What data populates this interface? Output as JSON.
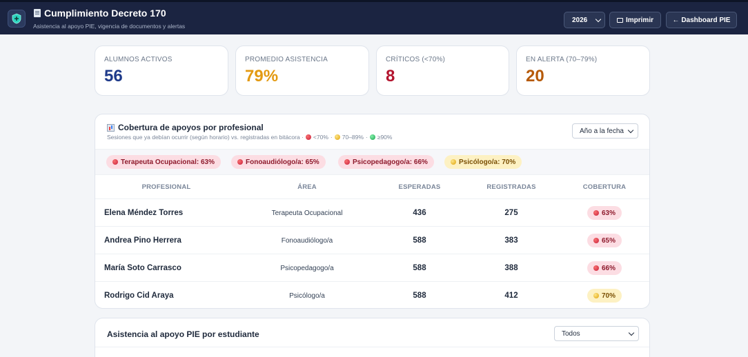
{
  "header": {
    "title": "Cumplimiento Decreto 170",
    "subtitle": "Asistencia al apoyo PIE, vigencia de documentos y alertas",
    "year": "2026",
    "print_label": "Imprimir",
    "dashboard_label": "← Dashboard PIE"
  },
  "stats": [
    {
      "label": "ALUMNOS ACTIVOS",
      "value": "56",
      "color": "#1e3a8a"
    },
    {
      "label": "PROMEDIO ASISTENCIA",
      "value": "79%",
      "color": "#e39a12"
    },
    {
      "label": "CRÍTICOS (<70%)",
      "value": "8",
      "color": "#b3142e"
    },
    {
      "label": "EN ALERTA (70–79%)",
      "value": "20",
      "color": "#b65a09"
    }
  ],
  "coverage": {
    "title": "Cobertura de apoyos por profesional",
    "description": "Sesiones que ya debían ocurrir (según horario) vs. registradas en bitácora ·",
    "legend": {
      "red": "<70%",
      "yellow": "70–89%",
      "green": "≥90%"
    },
    "period": "Año a la fecha",
    "summary_pills": [
      {
        "label": "Terapeuta Ocupacional: 63%",
        "status": "red"
      },
      {
        "label": "Fonoaudiólogo/a: 65%",
        "status": "red"
      },
      {
        "label": "Psicopedagogo/a: 66%",
        "status": "red"
      },
      {
        "label": "Psicólogo/a: 70%",
        "status": "yellow"
      }
    ],
    "columns": [
      "PROFESIONAL",
      "ÁREA",
      "ESPERADAS",
      "REGISTRADAS",
      "COBERTURA"
    ],
    "rows": [
      {
        "name": "Elena Méndez Torres",
        "area": "Terapeuta Ocupacional",
        "expected": "436",
        "registered": "275",
        "coverage": "63%",
        "status": "red"
      },
      {
        "name": "Andrea Pino Herrera",
        "area": "Fonoaudiólogo/a",
        "expected": "588",
        "registered": "383",
        "coverage": "65%",
        "status": "red"
      },
      {
        "name": "María Soto Carrasco",
        "area": "Psicopedagogo/a",
        "expected": "588",
        "registered": "388",
        "coverage": "66%",
        "status": "red"
      },
      {
        "name": "Rodrigo Cid Araya",
        "area": "Psicólogo/a",
        "expected": "588",
        "registered": "412",
        "coverage": "70%",
        "status": "yellow"
      }
    ]
  },
  "attendance": {
    "title": "Asistencia al apoyo PIE por estudiante",
    "filter": "Todos"
  },
  "colors": {
    "red_bg": "#fcdde3",
    "red_fg": "#8e1a2c",
    "yellow_bg": "#fdf1c3",
    "yellow_fg": "#7a4f04",
    "navy": "#1b2441"
  }
}
